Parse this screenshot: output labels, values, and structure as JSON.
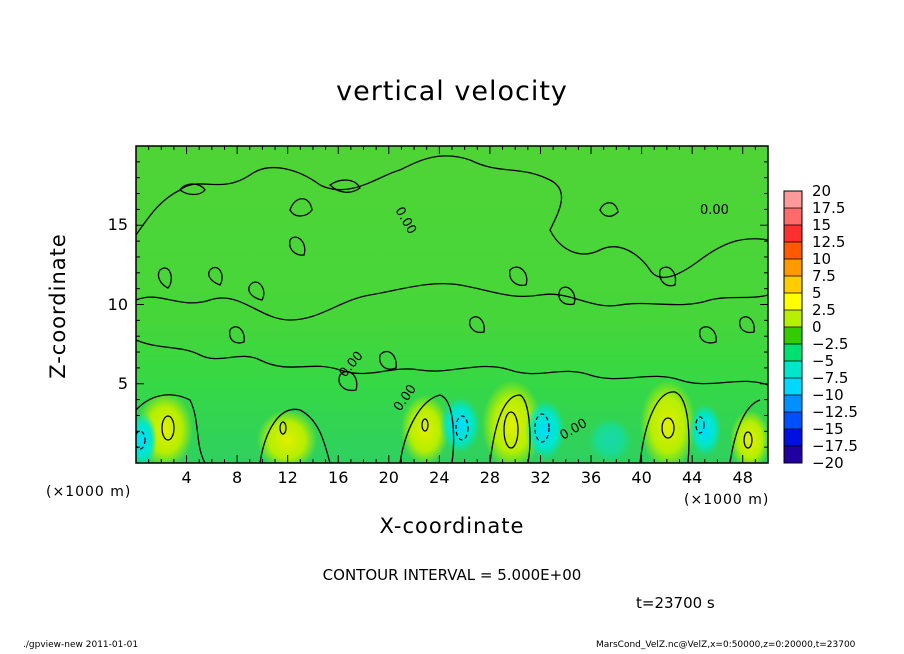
{
  "chart_data": {
    "type": "heatmap",
    "title": "vertical velocity",
    "xlabel": "X-coordinate",
    "ylabel": "Z-coordinate",
    "x_unit": "(×1000 m)",
    "y_unit": "(×1000 m)",
    "xlim": [
      0,
      50
    ],
    "ylim": [
      0,
      20
    ],
    "x_ticks": [
      4,
      8,
      12,
      16,
      20,
      24,
      28,
      32,
      36,
      40,
      44,
      48
    ],
    "y_ticks": [
      5,
      10,
      15
    ],
    "contour_interval": "CONTOUR INTERVAL = 5.000E+00",
    "time_label": "t=23700 s",
    "contour_annotations": [
      "0.00",
      "0.00",
      "0.00",
      "0.00",
      "0.00"
    ],
    "colorbar": {
      "labels": [
        "20",
        "17.5",
        "15",
        "12.5",
        "10",
        "7.5",
        "5",
        "2.5",
        "0",
        "−2.5",
        "−5",
        "−7.5",
        "−10",
        "−12.5",
        "−15",
        "−17.5",
        "−20"
      ],
      "colors": [
        "#ff9a9a",
        "#ff6a6a",
        "#ff2f2f",
        "#ff5a00",
        "#ff9900",
        "#ffcc00",
        "#ffff00",
        "#b6f000",
        "#33cc00",
        "#00e070",
        "#00e6c8",
        "#00d8ff",
        "#0090ff",
        "#0050ff",
        "#0010e0",
        "#2000a0",
        "#7000b0"
      ]
    }
  },
  "footer": {
    "left": "./gpview-new   2011-01-01",
    "right": "MarsCond_VelZ.nc@VelZ,x=0:50000,z=0:20000,t=23700"
  }
}
